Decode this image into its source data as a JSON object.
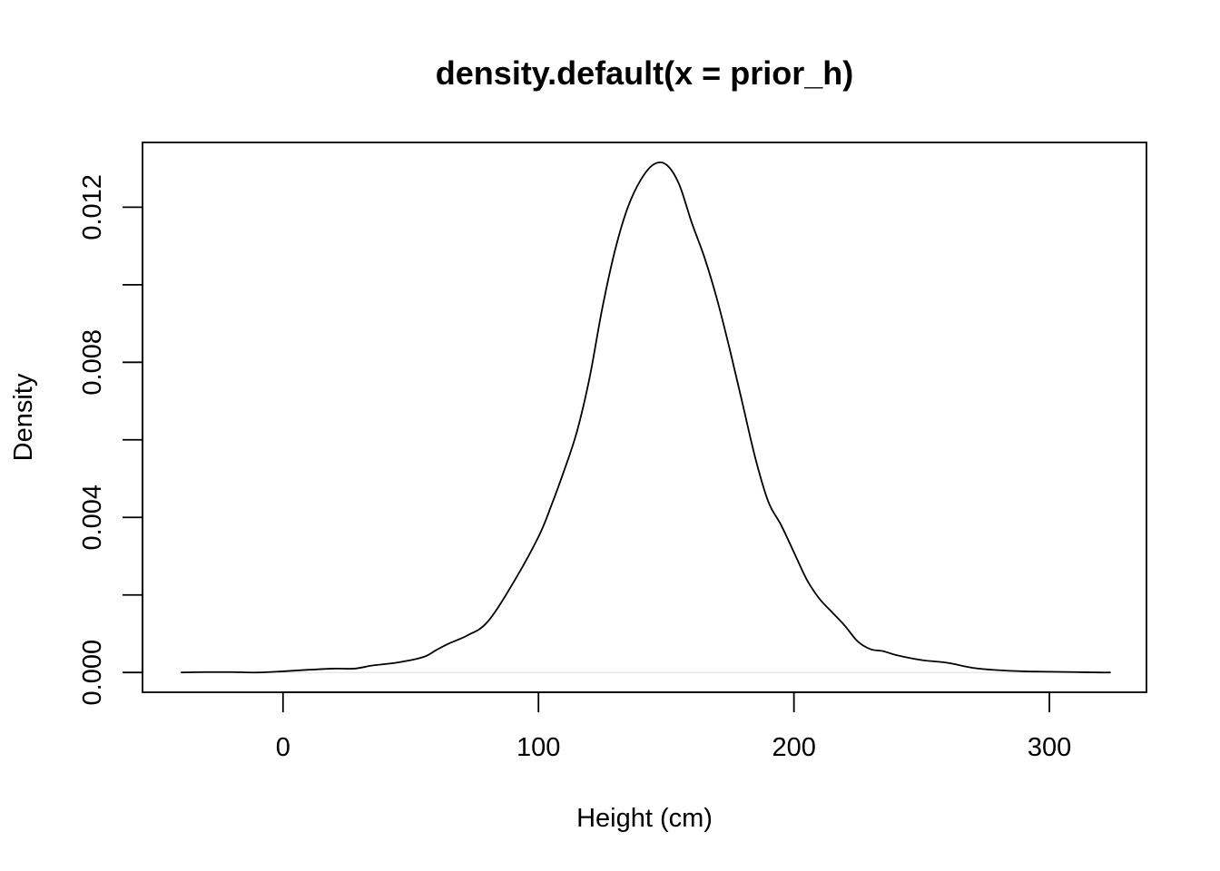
{
  "chart_data": {
    "type": "line",
    "title": "density.default(x = prior_h)",
    "xlabel": "Height (cm)",
    "ylabel": "Density",
    "xlim": [
      -55,
      338
    ],
    "ylim": [
      -0.00051,
      0.01367
    ],
    "xticks": [
      0,
      100,
      200,
      300
    ],
    "xtick_labels": [
      "0",
      "100",
      "200",
      "300"
    ],
    "yticks": [
      0.0,
      0.002,
      0.004,
      0.006,
      0.008,
      0.01,
      0.012
    ],
    "ytick_labels": [
      "0.000",
      "",
      "0.004",
      "",
      "0.008",
      "",
      "0.012"
    ],
    "grid": false,
    "legend": "none",
    "series": [
      {
        "x": [
          -40,
          -30,
          -20,
          -10,
          0,
          10,
          20,
          28,
          35,
          45,
          55,
          60,
          65,
          72,
          80,
          90,
          100,
          105,
          110,
          115,
          120,
          125,
          130,
          135,
          140,
          145,
          150,
          155,
          160,
          165,
          170,
          175,
          180,
          185,
          190,
          195,
          200,
          205,
          210,
          215,
          220,
          225,
          230,
          235,
          240,
          250,
          260,
          270,
          280,
          290,
          300,
          310,
          320,
          324
        ],
        "y": [
          0.0,
          1e-05,
          1e-05,
          0.0,
          3e-05,
          7e-05,
          0.0001,
          0.0001,
          0.00018,
          0.00026,
          0.0004,
          0.00058,
          0.00075,
          0.00095,
          0.0013,
          0.0023,
          0.0035,
          0.0043,
          0.0052,
          0.0062,
          0.0076,
          0.0094,
          0.0109,
          0.012,
          0.0127,
          0.0131,
          0.0131,
          0.0126,
          0.0116,
          0.0107,
          0.0096,
          0.0083,
          0.0069,
          0.0055,
          0.0044,
          0.0038,
          0.0031,
          0.0024,
          0.0019,
          0.00155,
          0.0012,
          0.0008,
          0.0006,
          0.00055,
          0.00045,
          0.00032,
          0.00025,
          0.00012,
          6e-05,
          3e-05,
          2e-05,
          1e-05,
          0.0,
          0.0
        ]
      }
    ]
  }
}
